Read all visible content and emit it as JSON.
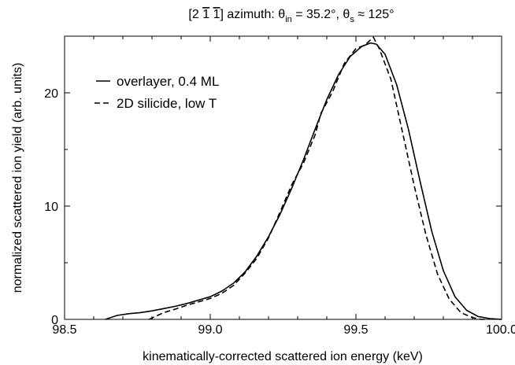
{
  "chart_data": {
    "type": "line",
    "title": {
      "bracket_open": "[2 ",
      "bar1": "1",
      "gap": " ",
      "bar2": "1",
      "rest1": "] azimuth: θ",
      "sub_in": "in",
      "rest2": " = 35.2°,  θ",
      "sub_s": "s",
      "rest3": " ≈ 125°"
    },
    "xlabel": "kinematically-corrected scattered ion energy (keV)",
    "ylabel": "normalized scattered ion yield (arb. units)",
    "xlim": [
      98.5,
      100.0
    ],
    "ylim": [
      0,
      25
    ],
    "x_ticks": [
      "98.5",
      "99.0",
      "99.5",
      "100.0"
    ],
    "y_ticks": [
      "0",
      "10",
      "20"
    ],
    "grid": false,
    "legend_position": "top-left",
    "series": [
      {
        "name": "overlayer, 0.4 ML",
        "style": "solid",
        "color": "#000000",
        "x": [
          98.64,
          98.68,
          98.72,
          98.76,
          98.8,
          98.84,
          98.88,
          98.92,
          98.96,
          99.0,
          99.04,
          99.08,
          99.12,
          99.16,
          99.2,
          99.24,
          99.28,
          99.32,
          99.36,
          99.4,
          99.44,
          99.48,
          99.52,
          99.55,
          99.57,
          99.6,
          99.64,
          99.68,
          99.72,
          99.76,
          99.8,
          99.84,
          99.88,
          99.92,
          99.96,
          100.0
        ],
        "y": [
          0.0,
          0.35,
          0.5,
          0.6,
          0.75,
          0.95,
          1.15,
          1.4,
          1.7,
          2.0,
          2.5,
          3.2,
          4.2,
          5.6,
          7.3,
          9.3,
          11.6,
          14.1,
          16.8,
          19.4,
          21.6,
          23.2,
          24.1,
          24.4,
          24.3,
          23.4,
          20.7,
          16.8,
          12.2,
          7.8,
          4.3,
          2.0,
          0.8,
          0.25,
          0.07,
          0.0
        ]
      },
      {
        "name": "2D silicide, low T",
        "style": "dashed",
        "color": "#000000",
        "x": [
          98.79,
          98.84,
          98.88,
          98.92,
          98.96,
          99.0,
          99.04,
          99.08,
          99.12,
          99.16,
          99.2,
          99.24,
          99.28,
          99.32,
          99.36,
          99.38,
          99.42,
          99.46,
          99.5,
          99.53,
          99.56,
          99.58,
          99.62,
          99.66,
          99.7,
          99.74,
          99.78,
          99.82,
          99.86,
          99.9,
          99.93,
          99.95
        ],
        "y": [
          0.0,
          0.6,
          0.9,
          1.25,
          1.55,
          1.85,
          2.3,
          3.0,
          4.1,
          5.4,
          7.2,
          9.5,
          11.9,
          13.8,
          16.3,
          18.2,
          20.1,
          22.6,
          23.9,
          24.2,
          24.9,
          23.9,
          21.2,
          16.5,
          11.8,
          7.5,
          4.0,
          1.8,
          0.6,
          0.15,
          0.0,
          0.0
        ]
      }
    ]
  }
}
